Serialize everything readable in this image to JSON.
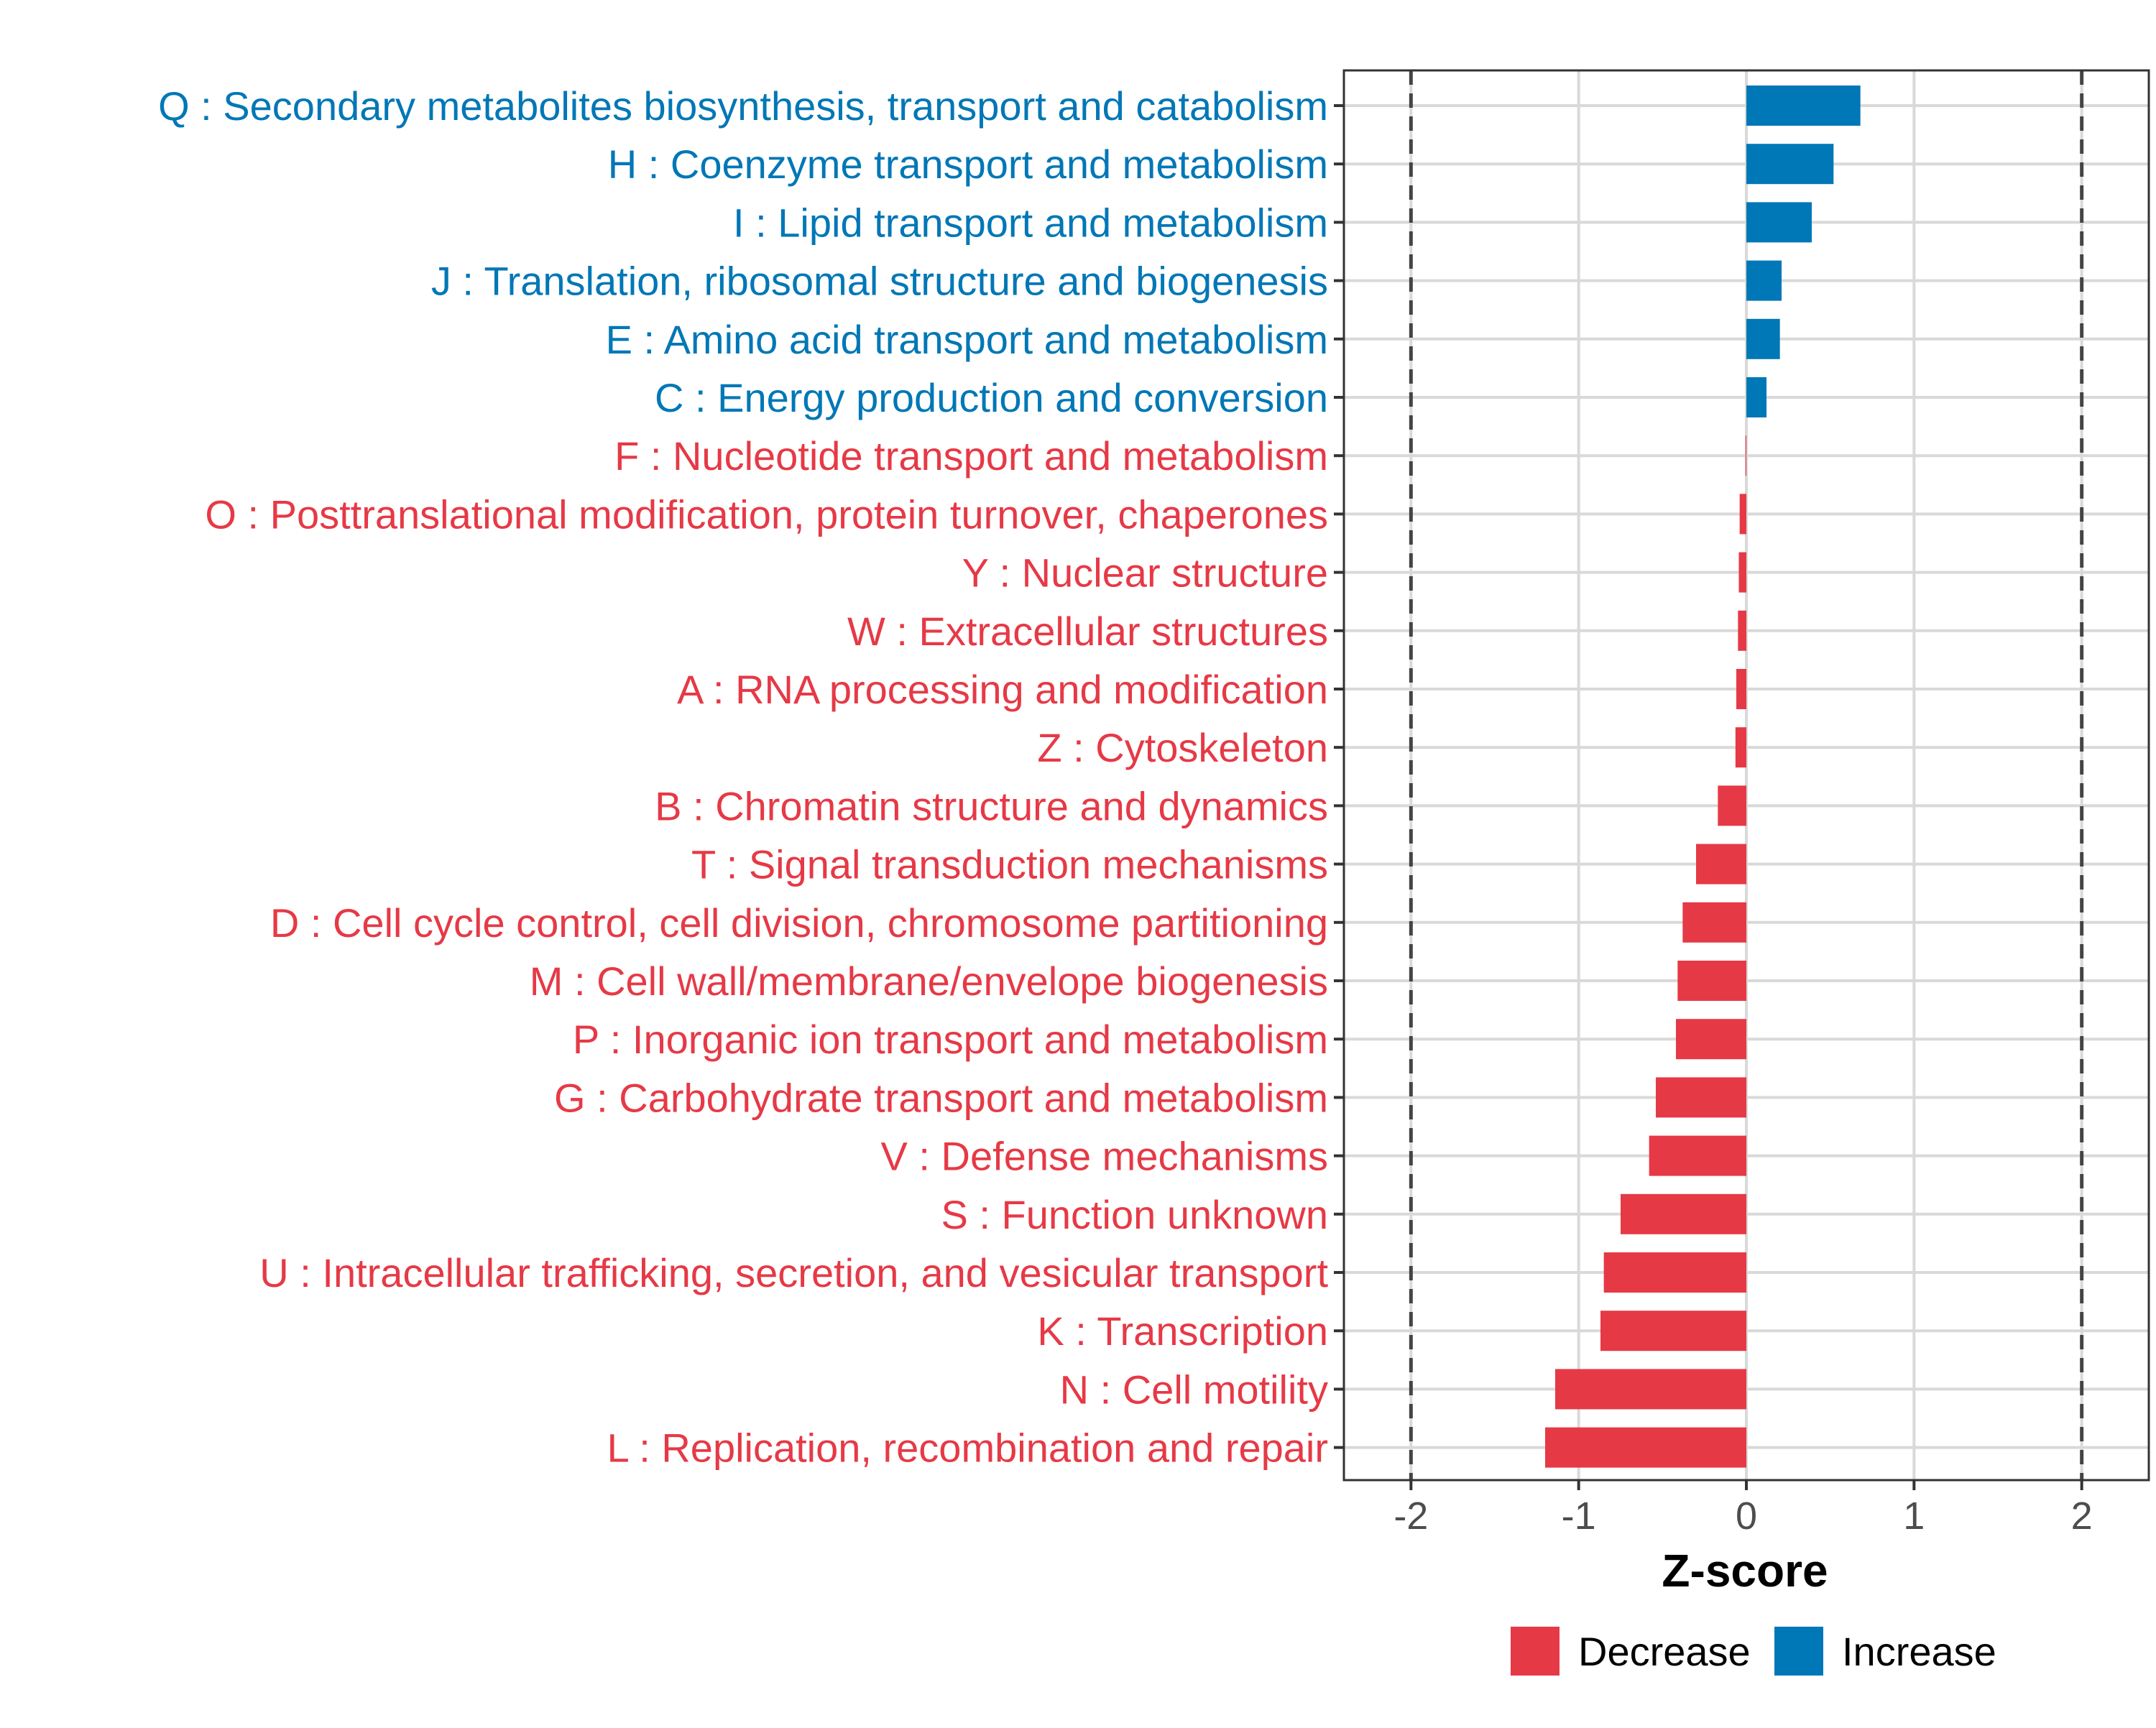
{
  "chart_data": {
    "type": "bar",
    "orientation": "horizontal",
    "xlabel": "Z-score",
    "ylabel": "",
    "xlim": [
      -2.4,
      2.4
    ],
    "xticks": [
      -2,
      -1,
      0,
      1,
      2
    ],
    "xtick_labels": [
      "-2",
      "-1",
      "0",
      "1",
      "2"
    ],
    "reference_lines": [
      -2,
      2
    ],
    "grid": true,
    "colors": {
      "Decrease": "#e63946",
      "Increase": "#0077b6"
    },
    "categories": [
      "Q : Secondary metabolites biosynthesis, transport and catabolism",
      "H : Coenzyme transport and metabolism",
      "I : Lipid transport and metabolism",
      "J : Translation, ribosomal structure and biogenesis",
      "E : Amino acid transport and metabolism",
      "C : Energy production and conversion",
      "F : Nucleotide transport and metabolism",
      "O : Posttranslational modification, protein turnover, chaperones",
      "Y : Nuclear structure",
      "W : Extracellular structures",
      "A : RNA processing and modification",
      "Z : Cytoskeleton",
      "B : Chromatin structure and dynamics",
      "T : Signal transduction mechanisms",
      "D : Cell cycle control, cell division, chromosome partitioning",
      "M : Cell wall/membrane/envelope biogenesis",
      "P : Inorganic ion transport and metabolism",
      "G : Carbohydrate transport and metabolism",
      "V : Defense mechanisms",
      "S : Function unknown",
      "U : Intracellular trafficking, secretion, and vesicular transport",
      "K : Transcription",
      "N : Cell motility",
      "L : Replication, recombination and repair"
    ],
    "values": [
      0.68,
      0.52,
      0.39,
      0.21,
      0.2,
      0.12,
      -0.005,
      -0.04,
      -0.045,
      -0.05,
      -0.06,
      -0.065,
      -0.17,
      -0.3,
      -0.38,
      -0.41,
      -0.42,
      -0.54,
      -0.58,
      -0.75,
      -0.85,
      -0.87,
      -1.14,
      -1.2
    ],
    "groups": [
      "Increase",
      "Increase",
      "Increase",
      "Increase",
      "Increase",
      "Increase",
      "Decrease",
      "Decrease",
      "Decrease",
      "Decrease",
      "Decrease",
      "Decrease",
      "Decrease",
      "Decrease",
      "Decrease",
      "Decrease",
      "Decrease",
      "Decrease",
      "Decrease",
      "Decrease",
      "Decrease",
      "Decrease",
      "Decrease",
      "Decrease"
    ],
    "legend": {
      "position": "bottom",
      "entries": [
        "Decrease",
        "Increase"
      ]
    }
  }
}
